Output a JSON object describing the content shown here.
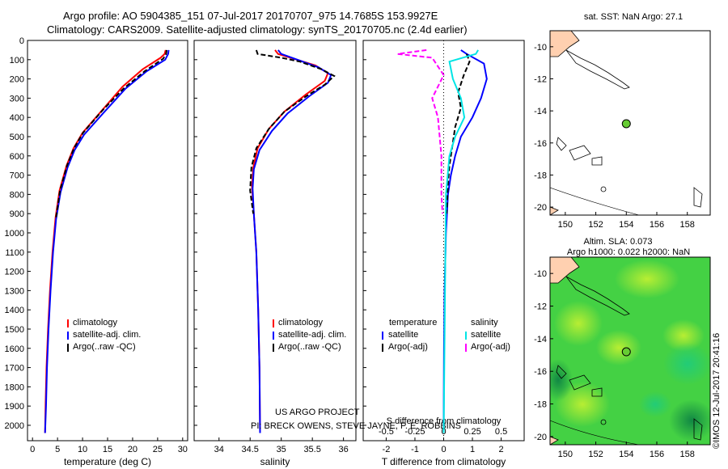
{
  "header": {
    "title_line1": "Argo profile: AO 5904385_151 07-Jul-2017 20170707_975 14.7685S 153.9927E",
    "title_line2": "Climatology: CARS2009. Satellite-adjusted climatology: synTS_20170705.nc (2.4d earlier)"
  },
  "stamp": "©IMOS 12-Jul-2017 20:41:16",
  "colors": {
    "climatology": "#ff0000",
    "satellite": "#0000ff",
    "argo": "#000000",
    "sal_satellite": "#00e5e5",
    "sal_argo": "#ff00ff",
    "land": "#ffd0b0",
    "float": "#66cc33"
  },
  "chart_data": [
    {
      "id": "temperature",
      "type": "line",
      "xlabel": "temperature (deg C)",
      "ylabel": "",
      "xlim": [
        -1,
        31
      ],
      "ylim": [
        2080,
        0
      ],
      "xticks": [
        0,
        5,
        10,
        15,
        20,
        25,
        30
      ],
      "yticks": [
        0,
        100,
        200,
        300,
        400,
        500,
        600,
        700,
        800,
        900,
        1000,
        1100,
        1200,
        1300,
        1400,
        1500,
        1600,
        1700,
        1800,
        1900,
        2000
      ],
      "legend": [
        "climatology",
        "satellite-adj. clim.",
        "Argo(..raw -QC)"
      ],
      "series": [
        {
          "name": "climatology",
          "color": "#ff0000",
          "dash": false,
          "points": [
            [
              26.6,
              50
            ],
            [
              26.4,
              70
            ],
            [
              25.6,
              90
            ],
            [
              22,
              150
            ],
            [
              18,
              240
            ],
            [
              14,
              360
            ],
            [
              10,
              480
            ],
            [
              8.2,
              560
            ],
            [
              6.8,
              650
            ],
            [
              5.4,
              780
            ],
            [
              4.6,
              920
            ],
            [
              4,
              1100
            ],
            [
              3.5,
              1300
            ],
            [
              3.1,
              1500
            ],
            [
              2.8,
              1700
            ],
            [
              2.6,
              1900
            ],
            [
              2.5,
              2040
            ]
          ]
        },
        {
          "name": "satellite-adj. clim.",
          "color": "#0000ff",
          "dash": false,
          "points": [
            [
              27.2,
              50
            ],
            [
              27.1,
              70
            ],
            [
              26.5,
              100
            ],
            [
              22.8,
              160
            ],
            [
              18.6,
              250
            ],
            [
              14.4,
              370
            ],
            [
              10.3,
              490
            ],
            [
              8.4,
              570
            ],
            [
              7,
              660
            ],
            [
              5.6,
              790
            ],
            [
              4.7,
              930
            ],
            [
              4.1,
              1100
            ],
            [
              3.6,
              1300
            ],
            [
              3.2,
              1500
            ],
            [
              2.9,
              1700
            ],
            [
              2.7,
              1900
            ],
            [
              2.5,
              2040
            ]
          ]
        },
        {
          "name": "Argo(..raw -QC)",
          "color": "#000000",
          "dash": true,
          "points": [
            [
              26.8,
              50
            ],
            [
              26.7,
              70
            ],
            [
              26.1,
              95
            ],
            [
              22.4,
              160
            ],
            [
              18.2,
              250
            ],
            [
              14.1,
              360
            ],
            [
              10.1,
              480
            ],
            [
              8.3,
              560
            ],
            [
              6.9,
              650
            ],
            [
              5.5,
              780
            ],
            [
              4.7,
              920
            ]
          ]
        }
      ]
    },
    {
      "id": "salinity",
      "type": "line",
      "xlabel": "salinity",
      "ylabel": "",
      "xlim": [
        33.6,
        36.2
      ],
      "ylim": [
        2080,
        0
      ],
      "xticks": [
        34,
        34.5,
        35,
        35.5,
        36
      ],
      "legend": [
        "climatology",
        "satellite-adj. clim.",
        "Argo(..raw -QC)"
      ],
      "annotation_line1": "US ARGO PROJECT",
      "annotation_line2": "PI: BRECK OWENS, STEVE JAYNE, P. E. ROBBINS",
      "series": [
        {
          "name": "climatology",
          "color": "#ff0000",
          "dash": false,
          "points": [
            [
              34.9,
              50
            ],
            [
              34.95,
              70
            ],
            [
              35.25,
              100
            ],
            [
              35.55,
              130
            ],
            [
              35.75,
              170
            ],
            [
              35.7,
              210
            ],
            [
              35.4,
              280
            ],
            [
              35.05,
              370
            ],
            [
              34.8,
              460
            ],
            [
              34.62,
              560
            ],
            [
              34.55,
              660
            ],
            [
              34.53,
              760
            ],
            [
              34.56,
              900
            ],
            [
              34.6,
              1100
            ],
            [
              34.63,
              1400
            ],
            [
              34.65,
              1700
            ],
            [
              34.66,
              2040
            ]
          ]
        },
        {
          "name": "satellite-adj. clim.",
          "color": "#0000ff",
          "dash": false,
          "points": [
            [
              34.95,
              50
            ],
            [
              35.0,
              70
            ],
            [
              35.3,
              105
            ],
            [
              35.6,
              140
            ],
            [
              35.8,
              180
            ],
            [
              35.75,
              220
            ],
            [
              35.45,
              290
            ],
            [
              35.1,
              380
            ],
            [
              34.85,
              470
            ],
            [
              34.65,
              570
            ],
            [
              34.56,
              670
            ],
            [
              34.54,
              770
            ],
            [
              34.56,
              900
            ],
            [
              34.6,
              1100
            ],
            [
              34.63,
              1400
            ],
            [
              34.65,
              1700
            ],
            [
              34.66,
              2040
            ]
          ]
        },
        {
          "name": "Argo(..raw -QC)",
          "color": "#000000",
          "dash": true,
          "points": [
            [
              34.6,
              50
            ],
            [
              34.62,
              70
            ],
            [
              35.0,
              90
            ],
            [
              35.3,
              110
            ],
            [
              35.65,
              150
            ],
            [
              35.85,
              185
            ],
            [
              35.7,
              230
            ],
            [
              35.4,
              290
            ],
            [
              35.05,
              370
            ],
            [
              34.8,
              460
            ],
            [
              34.6,
              560
            ],
            [
              34.52,
              660
            ],
            [
              34.5,
              780
            ],
            [
              34.55,
              900
            ]
          ]
        }
      ]
    },
    {
      "id": "difference",
      "type": "line",
      "xlabel": "T difference from climatology",
      "top_xlabel": "S difference from climatology",
      "xlim": [
        -2.8,
        2.8
      ],
      "ylim": [
        2080,
        0
      ],
      "xticks": [
        -2,
        -1,
        0,
        1,
        2
      ],
      "xtick_labels": [
        "-2",
        "-1",
        "0",
        "1",
        "2"
      ],
      "sticks": [
        -0.5,
        -0.25,
        0,
        0.25,
        0.5
      ],
      "stick_labels": [
        "-0.5",
        "-0.25",
        "0",
        "0.25",
        "0.5"
      ],
      "s_xlim": [
        -0.7,
        0.7
      ],
      "legend_temperature_title": "temperature",
      "legend_salinity_title": "salinity",
      "legend": [
        "satellite",
        "Argo(-adj)",
        "satellite",
        "Argo(-adj)"
      ],
      "series": [
        {
          "name": "satellite",
          "group": "temperature",
          "color": "#0000ff",
          "dash": false,
          "points": [
            [
              0.6,
              50
            ],
            [
              0.8,
              70
            ],
            [
              1.4,
              120
            ],
            [
              1.5,
              200
            ],
            [
              1.3,
              300
            ],
            [
              1.0,
              400
            ],
            [
              0.6,
              500
            ],
            [
              0.4,
              600
            ],
            [
              0.25,
              700
            ],
            [
              0.15,
              800
            ],
            [
              0.08,
              1000
            ],
            [
              0.03,
              1300
            ],
            [
              0.01,
              1600
            ],
            [
              0,
              2040
            ]
          ]
        },
        {
          "name": "Argo(-adj)",
          "group": "temperature",
          "color": "#000000",
          "dash": true,
          "points": [
            [
              0.8,
              70
            ],
            [
              0.9,
              110
            ],
            [
              0.7,
              180
            ],
            [
              0.5,
              270
            ],
            [
              0.6,
              350
            ],
            [
              0.4,
              450
            ],
            [
              0.3,
              550
            ],
            [
              0.2,
              650
            ],
            [
              0.15,
              750
            ],
            [
              0.1,
              900
            ]
          ]
        },
        {
          "name": "satellite",
          "group": "salinity",
          "color": "#00e5e5",
          "dash": false,
          "points": [
            [
              0.3,
              50
            ],
            [
              0.28,
              70
            ],
            [
              0.05,
              110
            ],
            [
              0.08,
              200
            ],
            [
              0.15,
              300
            ],
            [
              0.18,
              400
            ],
            [
              0.1,
              500
            ],
            [
              0.05,
              600
            ],
            [
              0.02,
              800
            ],
            [
              0,
              2040
            ]
          ]
        },
        {
          "name": "Argo(-adj)",
          "group": "salinity",
          "color": "#ff00ff",
          "dash": true,
          "points": [
            [
              -0.15,
              50
            ],
            [
              -0.4,
              70
            ],
            [
              -0.1,
              90
            ],
            [
              0,
              180
            ],
            [
              -0.1,
              300
            ],
            [
              -0.05,
              400
            ],
            [
              -0.02,
              600
            ],
            [
              -0.02,
              800
            ],
            [
              -0.01,
              900
            ]
          ]
        }
      ]
    },
    {
      "id": "sst_map",
      "type": "map",
      "title": "sat. SST: NaN Argo: 27.1",
      "xlim": [
        149,
        159.5
      ],
      "ylim": [
        -20.5,
        -9
      ],
      "xticks": [
        150,
        152,
        154,
        156,
        158
      ],
      "yticks": [
        -10,
        -12,
        -14,
        -16,
        -18,
        -20
      ],
      "float_lon": 154,
      "float_lat": -14.8
    },
    {
      "id": "sla_map",
      "type": "map",
      "title_line1": "Altim. SLA: 0.073",
      "title_line2": "Argo h1000: 0.022 h2000: NaN",
      "xlim": [
        149,
        159.5
      ],
      "ylim": [
        -20.5,
        -9
      ],
      "xticks": [
        150,
        152,
        154,
        156,
        158
      ],
      "yticks": [
        -10,
        -12,
        -14,
        -16,
        -18,
        -20
      ],
      "float_lon": 154,
      "float_lat": -14.8
    }
  ]
}
